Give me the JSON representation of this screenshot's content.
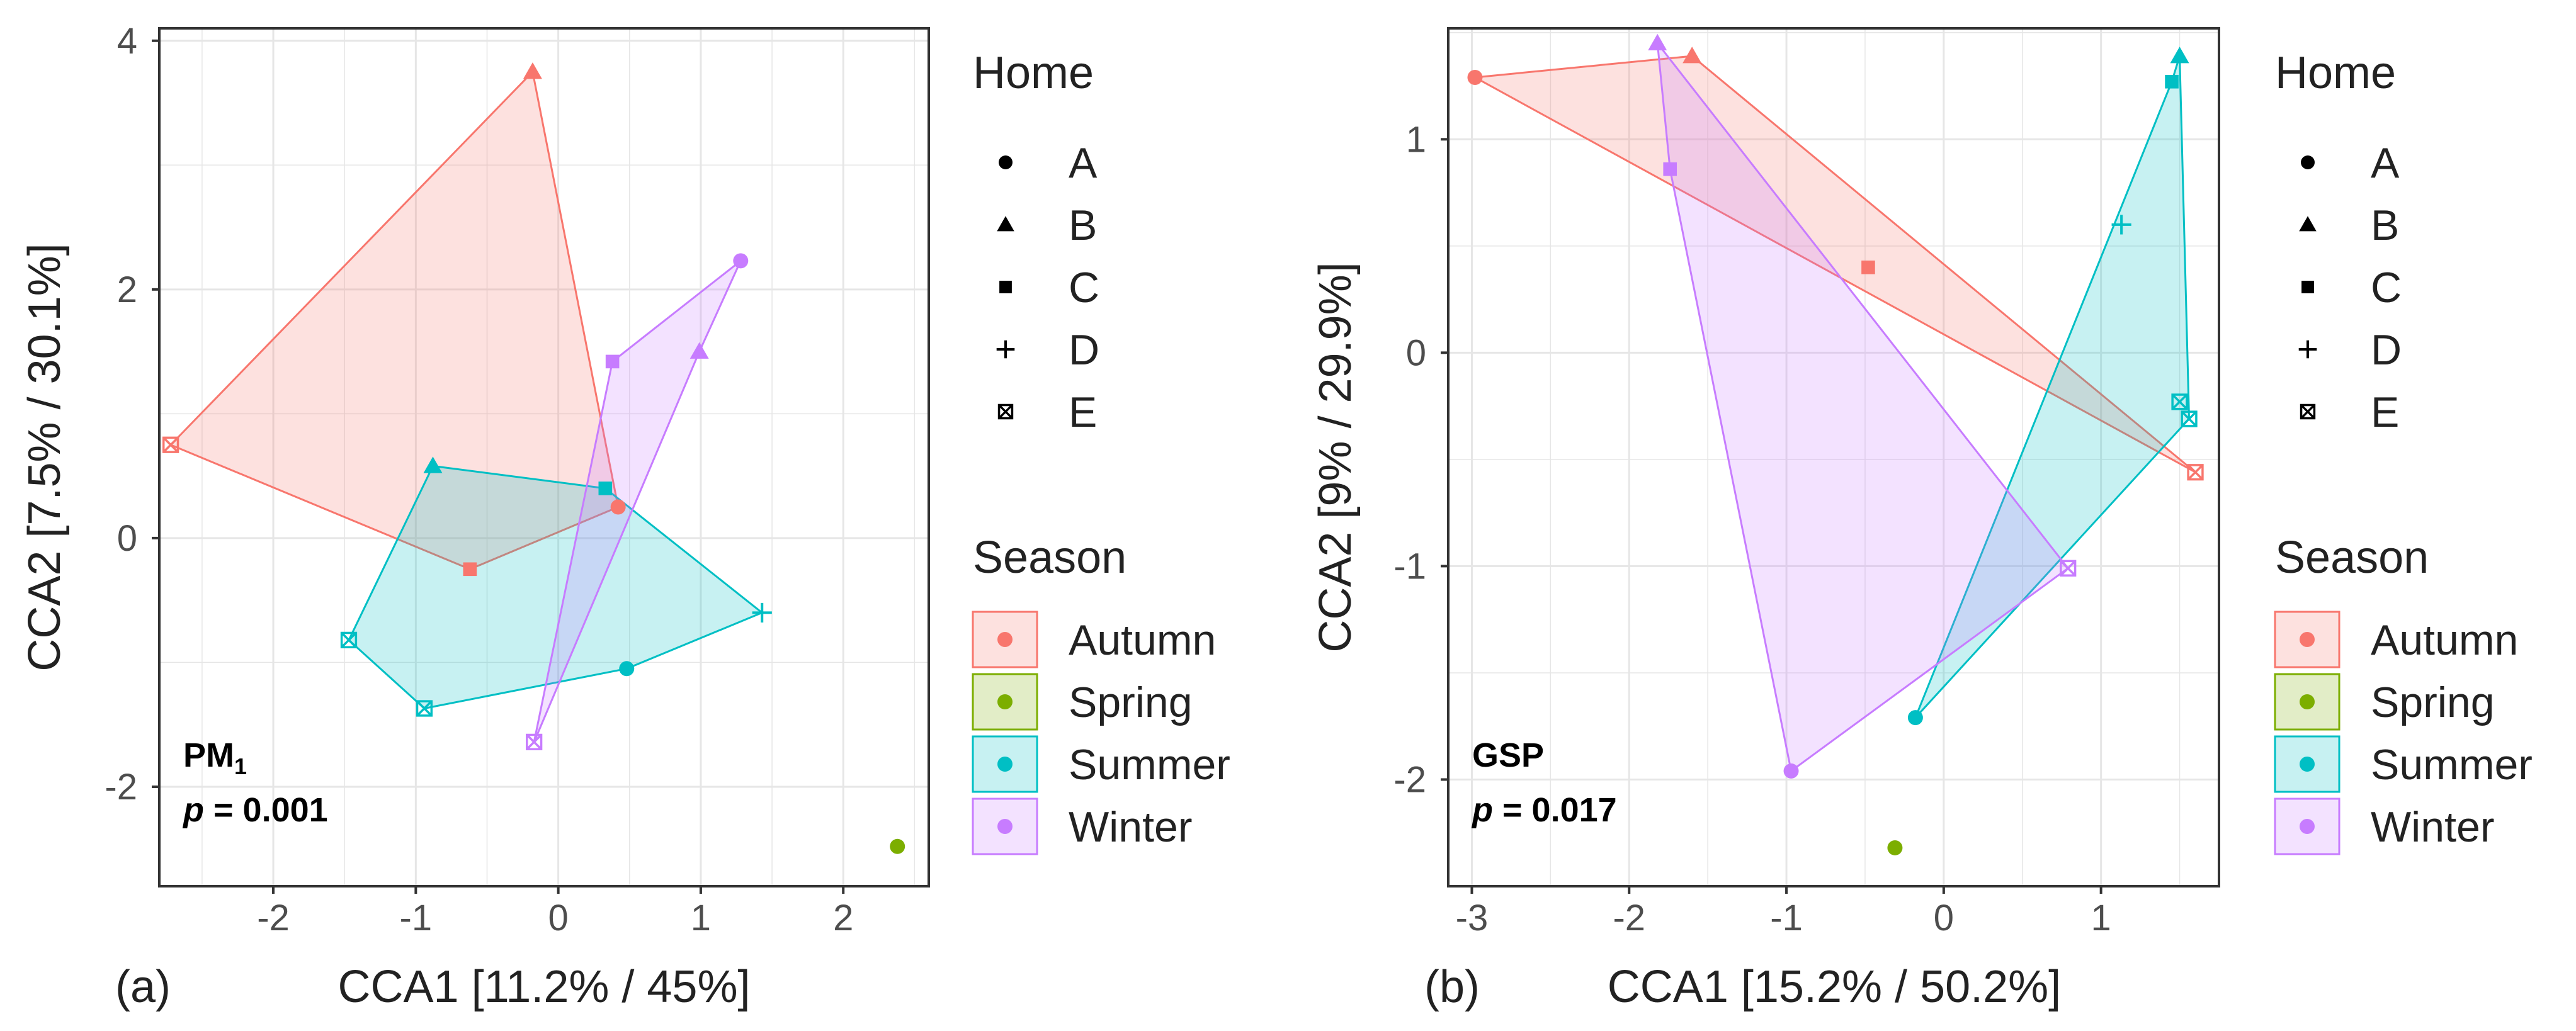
{
  "chart_data": [
    {
      "panel_label": "(a)",
      "type": "scatter",
      "annotation_main": "PM",
      "annotation_sub": "1",
      "annotation_p_label": "p",
      "annotation_p_value": " = 0.001",
      "xlabel": "CCA1 [11.2% / 45%]",
      "ylabel": "CCA2 [7.5% / 30.1%]",
      "xlim": [
        -2.8,
        2.6
      ],
      "ylim": [
        -2.8,
        4.1
      ],
      "xticks": [
        -2,
        -1,
        0,
        1,
        2
      ],
      "yticks": [
        -2,
        0,
        2,
        4
      ],
      "grid": true,
      "points": [
        {
          "season": "Autumn",
          "home": "A",
          "x": 0.42,
          "y": 0.25
        },
        {
          "season": "Autumn",
          "home": "B",
          "x": -0.18,
          "y": 3.75
        },
        {
          "season": "Autumn",
          "home": "C",
          "x": -0.62,
          "y": -0.25
        },
        {
          "season": "Autumn",
          "home": "E",
          "x": -2.72,
          "y": 0.75
        },
        {
          "season": "Spring",
          "home": "A",
          "x": 2.38,
          "y": -2.48
        },
        {
          "season": "Summer",
          "home": "A",
          "x": 0.48,
          "y": -1.05
        },
        {
          "season": "Summer",
          "home": "B",
          "x": -0.88,
          "y": 0.58
        },
        {
          "season": "Summer",
          "home": "C",
          "x": 0.33,
          "y": 0.4
        },
        {
          "season": "Summer",
          "home": "D",
          "x": 1.43,
          "y": -0.6
        },
        {
          "season": "Summer",
          "home": "E",
          "x": -1.47,
          "y": -0.82
        },
        {
          "season": "Summer",
          "home": "E",
          "x": -0.94,
          "y": -1.37
        },
        {
          "season": "Winter",
          "home": "A",
          "x": 1.28,
          "y": 2.23
        },
        {
          "season": "Winter",
          "home": "B",
          "x": 0.99,
          "y": 1.5
        },
        {
          "season": "Winter",
          "home": "C",
          "x": 0.38,
          "y": 1.42
        },
        {
          "season": "Winter",
          "home": "E",
          "x": -0.17,
          "y": -1.64
        }
      ],
      "hulls": {
        "Autumn": [
          [
            -2.72,
            0.75
          ],
          [
            -0.18,
            3.75
          ],
          [
            0.42,
            0.25
          ],
          [
            -0.62,
            -0.25
          ]
        ],
        "Summer": [
          [
            -1.47,
            -0.82
          ],
          [
            -0.88,
            0.58
          ],
          [
            0.33,
            0.4
          ],
          [
            1.43,
            -0.6
          ],
          [
            0.48,
            -1.05
          ],
          [
            -0.94,
            -1.37
          ]
        ],
        "Winter": [
          [
            -0.17,
            -1.64
          ],
          [
            0.38,
            1.42
          ],
          [
            1.28,
            2.23
          ],
          [
            0.99,
            1.5
          ]
        ]
      }
    },
    {
      "panel_label": "(b)",
      "type": "scatter",
      "annotation_main": "GSP",
      "annotation_sub": "",
      "annotation_p_label": "p",
      "annotation_p_value": " = 0.017",
      "xlabel": "CCA1 [15.2% / 50.2%]",
      "ylabel": "CCA2 [9% / 29.9%]",
      "xlim": [
        -3.15,
        1.75
      ],
      "ylim": [
        -2.5,
        1.52
      ],
      "xticks": [
        -3,
        -2,
        -1,
        0,
        1
      ],
      "yticks": [
        -2,
        -1,
        0,
        1
      ],
      "grid": true,
      "points": [
        {
          "season": "Autumn",
          "home": "A",
          "x": -2.98,
          "y": 1.29
        },
        {
          "season": "Autumn",
          "home": "B",
          "x": -1.6,
          "y": 1.39
        },
        {
          "season": "Autumn",
          "home": "C",
          "x": -0.48,
          "y": 0.4
        },
        {
          "season": "Autumn",
          "home": "E",
          "x": 1.6,
          "y": -0.56
        },
        {
          "season": "Spring",
          "home": "A",
          "x": -0.31,
          "y": -2.32
        },
        {
          "season": "Summer",
          "home": "A",
          "x": -0.18,
          "y": -1.71
        },
        {
          "season": "Summer",
          "home": "B",
          "x": 1.5,
          "y": 1.39
        },
        {
          "season": "Summer",
          "home": "C",
          "x": 1.45,
          "y": 1.27
        },
        {
          "season": "Summer",
          "home": "D",
          "x": 1.13,
          "y": 0.6
        },
        {
          "season": "Summer",
          "home": "E",
          "x": 1.5,
          "y": -0.23
        },
        {
          "season": "Summer",
          "home": "E",
          "x": 1.56,
          "y": -0.31
        },
        {
          "season": "Winter",
          "home": "A",
          "x": -0.97,
          "y": -1.96
        },
        {
          "season": "Winter",
          "home": "B",
          "x": -1.82,
          "y": 1.45
        },
        {
          "season": "Winter",
          "home": "C",
          "x": -1.74,
          "y": 0.86
        },
        {
          "season": "Winter",
          "home": "E",
          "x": 0.79,
          "y": -1.01
        }
      ],
      "hulls": {
        "Autumn": [
          [
            -2.98,
            1.29
          ],
          [
            -1.6,
            1.39
          ],
          [
            1.6,
            -0.56
          ]
        ],
        "Summer": [
          [
            -0.18,
            -1.71
          ],
          [
            1.45,
            1.27
          ],
          [
            1.5,
            1.39
          ],
          [
            1.56,
            -0.31
          ]
        ],
        "Winter": [
          [
            -1.82,
            1.45
          ],
          [
            -1.74,
            0.86
          ],
          [
            -0.97,
            -1.96
          ],
          [
            0.79,
            -1.01
          ]
        ]
      }
    }
  ],
  "legend": {
    "home_title": "Home",
    "home_items": [
      "A",
      "B",
      "C",
      "D",
      "E"
    ],
    "season_title": "Season",
    "season_items": [
      "Autumn",
      "Spring",
      "Summer",
      "Winter"
    ]
  },
  "colors": {
    "Autumn": "#F8766D",
    "Spring": "#7CAE00",
    "Summer": "#00BFC4",
    "Winter": "#C77CFF",
    "panel_border": "#333333",
    "grid": "#e6e6e6",
    "text": "#222222",
    "tick_text": "#4d4d4d"
  }
}
